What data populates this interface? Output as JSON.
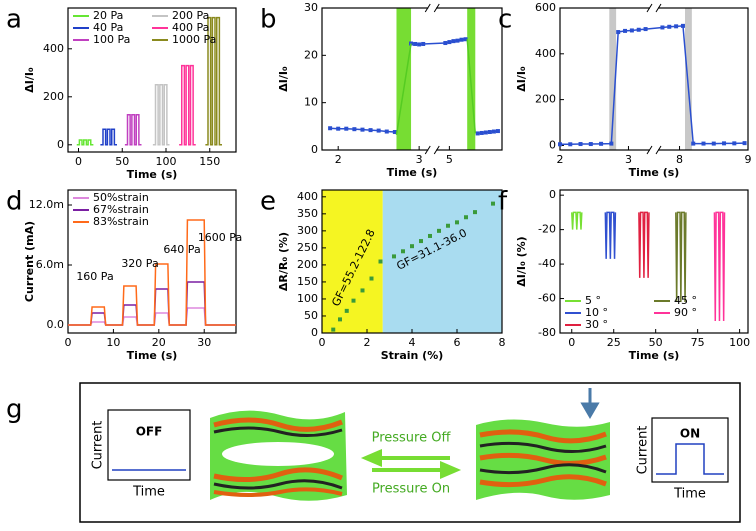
{
  "chart_data": [
    {
      "panel": "a",
      "type": "line",
      "xlabel": "Time (s)",
      "ylabel": "ΔI/I₀",
      "xlim": [
        -12,
        180
      ],
      "ylim": [
        -30,
        570
      ],
      "xticks": [
        0,
        50,
        100,
        150
      ],
      "yticks": [
        0,
        200,
        400
      ],
      "legend": "upper left",
      "legend_columns": 2,
      "series": [
        {
          "name": "20 Pa",
          "color": "#66e633",
          "x": [
            -2,
            1,
            1,
            4,
            4,
            6,
            6,
            9,
            9,
            11,
            11,
            14,
            14,
            17
          ],
          "values": [
            0,
            0,
            20,
            20,
            0,
            0,
            20,
            20,
            0,
            0,
            20,
            20,
            0,
            0
          ]
        },
        {
          "name": "40 Pa",
          "color": "#2040c8",
          "x": [
            25,
            28,
            28,
            31,
            31,
            33,
            33,
            36,
            36,
            38,
            38,
            41,
            41,
            44
          ],
          "values": [
            0,
            0,
            65,
            65,
            0,
            0,
            65,
            65,
            0,
            0,
            65,
            65,
            0,
            0
          ]
        },
        {
          "name": "100 Pa",
          "color": "#c040c0",
          "x": [
            53,
            56,
            56,
            59,
            59,
            61,
            61,
            64,
            64,
            66,
            66,
            69,
            69,
            72
          ],
          "values": [
            0,
            0,
            125,
            125,
            0,
            0,
            125,
            125,
            0,
            0,
            125,
            125,
            0,
            0
          ]
        },
        {
          "name": "200 Pa",
          "color": "#c4c4c4",
          "x": [
            85,
            88,
            88,
            91,
            91,
            93,
            93,
            96,
            96,
            98,
            98,
            101,
            101,
            104
          ],
          "values": [
            0,
            0,
            250,
            250,
            0,
            0,
            250,
            250,
            0,
            0,
            250,
            250,
            0,
            0
          ]
        },
        {
          "name": "400 Pa",
          "color": "#ff3399",
          "x": [
            115,
            118,
            118,
            121,
            121,
            123,
            123,
            126,
            126,
            128,
            128,
            131,
            131,
            134
          ],
          "values": [
            0,
            0,
            330,
            330,
            0,
            0,
            330,
            330,
            0,
            0,
            330,
            330,
            0,
            0
          ]
        },
        {
          "name": "1000 Pa",
          "color": "#8a8a1e",
          "x": [
            145,
            148,
            148,
            151,
            151,
            153,
            153,
            156,
            156,
            158,
            158,
            161,
            161,
            164
          ],
          "values": [
            0,
            0,
            530,
            530,
            0,
            0,
            530,
            530,
            0,
            0,
            530,
            530,
            0,
            0
          ]
        }
      ]
    },
    {
      "panel": "b",
      "type": "line",
      "xlabel": "Time (s)",
      "ylabel": "ΔI/I₀",
      "x_segments": [
        [
          1.8,
          3.1
        ],
        [
          4.85,
          5.65
        ]
      ],
      "ylim": [
        0,
        30
      ],
      "xticks": [
        2,
        3,
        5
      ],
      "yticks": [
        0,
        10,
        20,
        30
      ],
      "bands": [
        {
          "x0": 2.72,
          "x1": 2.9,
          "color": "#77dd33"
        },
        {
          "x0": 5.22,
          "x1": 5.32,
          "color": "#77dd33"
        }
      ],
      "series": [
        {
          "color": "#2a4fd0",
          "markers": "square",
          "x": [
            1.9,
            2.0,
            2.1,
            2.2,
            2.3,
            2.4,
            2.5,
            2.6,
            2.7,
            2.8,
            2.9,
            2.95,
            3.0,
            3.05,
            4.95,
            5.0,
            5.05,
            5.1,
            5.15,
            5.2,
            5.25,
            5.35,
            5.4,
            5.45,
            5.5,
            5.55,
            5.6
          ],
          "values": [
            4.6,
            4.5,
            4.5,
            4.4,
            4.3,
            4.2,
            4.1,
            3.9,
            3.8,
            null,
            22.5,
            22.4,
            22.3,
            22.4,
            22.6,
            22.8,
            23.0,
            23.1,
            23.3,
            23.4,
            null,
            3.5,
            3.6,
            3.7,
            3.8,
            3.9,
            4.0
          ]
        },
        {
          "color": "#55cc22",
          "x": [
            2.72,
            2.9,
            5.2,
            5.22,
            5.32
          ],
          "values": [
            3.2,
            22.5,
            null,
            23.4,
            3.5
          ]
        }
      ]
    },
    {
      "panel": "c",
      "type": "line",
      "xlabel": "Time (s)",
      "ylabel": "ΔI/I₀",
      "x_segments": [
        [
          2,
          3.3
        ],
        [
          7.7,
          9
        ]
      ],
      "ylim": [
        -20,
        600
      ],
      "xticks": [
        2,
        3,
        8,
        9
      ],
      "yticks": [
        0,
        200,
        400,
        600
      ],
      "bands": [
        {
          "x0": 2.72,
          "x1": 2.82,
          "color": "#c8c8c8"
        },
        {
          "x0": 8.08,
          "x1": 8.18,
          "color": "#c8c8c8"
        }
      ],
      "series": [
        {
          "color": "#2a4fd0",
          "markers": "square",
          "x": [
            2,
            2.15,
            2.3,
            2.45,
            2.6,
            2.75,
            2.85,
            2.95,
            3.05,
            3.15,
            3.25,
            7.75,
            7.85,
            7.95,
            8.05,
            8.2,
            8.35,
            8.5,
            8.65,
            8.8,
            8.95
          ],
          "values": [
            5,
            5,
            6,
            6,
            7,
            8,
            495,
            500,
            502,
            505,
            508,
            515,
            518,
            520,
            522,
            8,
            8,
            8,
            9,
            9,
            10
          ]
        }
      ]
    },
    {
      "panel": "d",
      "type": "line",
      "xlabel": "Time (s)",
      "ylabel": "Current (mA)",
      "xlim": [
        0,
        37
      ],
      "ylim": [
        -0.8,
        13.5
      ],
      "xticks": [
        0,
        10,
        20,
        30
      ],
      "yticks": [
        {
          "value": 0,
          "label": "0.0"
        },
        {
          "value": 6,
          "label": "6.0m"
        },
        {
          "value": 12,
          "label": "12.0m"
        }
      ],
      "legend": "upper left",
      "legend_columns": 1,
      "annotations": [
        "160 Pa",
        "320 Pa",
        "640 Pa",
        "1600 Pa"
      ],
      "series": [
        {
          "name": "50%strain",
          "color": "#dd88dd",
          "x": [
            0,
            5,
            5.3,
            8,
            8.3,
            12,
            12.3,
            15,
            15.3,
            19,
            19.3,
            22,
            22.3,
            26,
            26.3,
            30,
            30.3,
            37
          ],
          "values": [
            0,
            0,
            0.3,
            0.3,
            0,
            0,
            0.8,
            0.8,
            0,
            0,
            1.2,
            1.2,
            0,
            0,
            1.7,
            1.7,
            0,
            0
          ]
        },
        {
          "name": "67%strain",
          "color": "#7a1fa2",
          "x": [
            0,
            5,
            5.3,
            8,
            8.3,
            12,
            12.3,
            15,
            15.3,
            19,
            19.3,
            22,
            22.3,
            26,
            26.3,
            30,
            30.3,
            37
          ],
          "values": [
            0,
            0,
            1.2,
            1.2,
            0,
            0,
            2.0,
            2.0,
            0,
            0,
            3.6,
            3.6,
            0,
            0,
            4.3,
            4.3,
            0,
            0
          ]
        },
        {
          "name": "83%strain",
          "color": "#ff6a1a",
          "x": [
            0,
            5,
            5.3,
            8,
            8.3,
            12,
            12.3,
            15,
            15.3,
            19,
            19.3,
            22,
            22.3,
            26,
            26.3,
            30,
            30.3,
            37
          ],
          "values": [
            0,
            0,
            1.8,
            1.8,
            0,
            0,
            3.9,
            3.9,
            0,
            0,
            6.1,
            6.1,
            0,
            0,
            10.5,
            10.5,
            0,
            0
          ]
        }
      ]
    },
    {
      "panel": "e",
      "type": "scatter",
      "xlabel": "Strain (%)",
      "ylabel": "ΔR/R₀ (%)",
      "xlim": [
        0,
        8
      ],
      "ylim": [
        0,
        420
      ],
      "xticks": [
        0,
        2,
        4,
        6,
        8
      ],
      "yticks": [
        0,
        50,
        100,
        150,
        200,
        250,
        300,
        350,
        400
      ],
      "bands": [
        {
          "x0": 0,
          "x1": 2.7,
          "color": "#f5f522"
        },
        {
          "x0": 2.7,
          "x1": 8,
          "color": "#a9dcf0"
        }
      ],
      "annotations": [
        "GF=55.2-122.8",
        "GF=31.1-36.0"
      ],
      "series": [
        {
          "color": "#3a9a3a",
          "markers": "square",
          "x": [
            0.5,
            0.8,
            1.1,
            1.4,
            1.8,
            2.2,
            2.6,
            3.2,
            3.6,
            4.0,
            4.4,
            4.8,
            5.2,
            5.6,
            6.0,
            6.4,
            6.8,
            7.6
          ],
          "values": [
            10,
            40,
            65,
            95,
            125,
            160,
            210,
            225,
            240,
            255,
            270,
            285,
            300,
            315,
            325,
            340,
            355,
            380
          ]
        }
      ]
    },
    {
      "panel": "f",
      "type": "line",
      "xlabel": "Time (s)",
      "ylabel": "ΔI/I₀ (%)",
      "xlim": [
        -7,
        105
      ],
      "ylim": [
        -80,
        3
      ],
      "xticks": [
        0,
        25,
        50,
        75,
        100
      ],
      "yticks": [
        0,
        -20,
        -40,
        -60,
        -80
      ],
      "legend": "lower left",
      "legend_columns": 2,
      "series": [
        {
          "name": "5 °",
          "color": "#77e033",
          "x": [
            0,
            0.5,
            1,
            2.5,
            3,
            3.5,
            5,
            5.5,
            6
          ],
          "values": [
            -10,
            -20,
            -10,
            -10,
            -20,
            -10,
            -10,
            -20,
            -10
          ]
        },
        {
          "name": "10 °",
          "color": "#3050d0",
          "x": [
            20,
            20.5,
            21,
            22.5,
            23,
            23.5,
            25,
            25.5,
            26
          ],
          "values": [
            -10,
            -37,
            -10,
            -10,
            -37,
            -10,
            -10,
            -37,
            -10
          ]
        },
        {
          "name": "30 °",
          "color": "#e02040",
          "x": [
            40,
            40.5,
            41,
            42.5,
            43,
            43.5,
            45,
            45.5,
            46
          ],
          "values": [
            -10,
            -48,
            -10,
            -10,
            -48,
            -10,
            -10,
            -48,
            -10
          ]
        },
        {
          "name": "45 °",
          "color": "#6b7a2a",
          "x": [
            62,
            62.5,
            63,
            64.5,
            65,
            65.5,
            67,
            67.5,
            68
          ],
          "values": [
            -10,
            -62,
            -10,
            -10,
            -62,
            -10,
            -10,
            -62,
            -10
          ]
        },
        {
          "name": "90 °",
          "color": "#ff3399",
          "x": [
            85,
            85.5,
            86,
            87.5,
            88,
            88.5,
            90,
            90.5,
            91
          ],
          "values": [
            -10,
            -73,
            -10,
            -10,
            -73,
            -10,
            -10,
            -73,
            -10
          ]
        }
      ]
    }
  ],
  "diagram": {
    "panel": "g",
    "off_panel": {
      "title": "OFF",
      "ylabel": "Current",
      "xlabel": "Time"
    },
    "on_panel": {
      "title": "ON",
      "ylabel": "Current",
      "xlabel": "Time"
    },
    "arrow_top": "Pressure Off",
    "arrow_bottom": "Pressure On"
  }
}
